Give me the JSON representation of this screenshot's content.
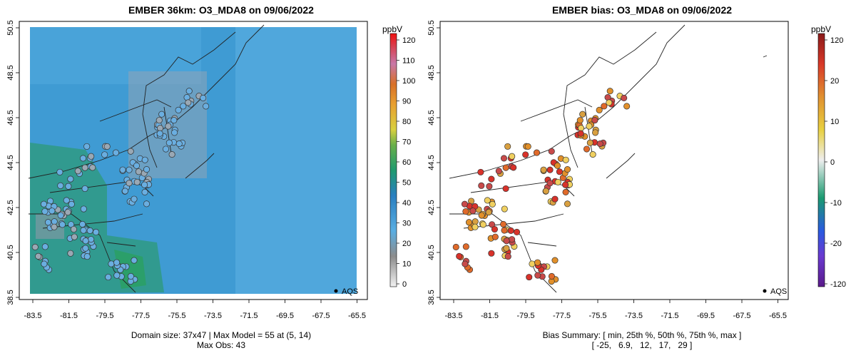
{
  "left_panel": {
    "title": "EMBER 36km: O3_MDA8 on 09/06/2022",
    "caption_line1": "Domain size: 37x47 | Max Model = 55 at (5, 14)",
    "caption_line2": "Max Obs: 43",
    "legend_label": "AQS",
    "colorbar": {
      "unit": "ppbV",
      "ticks": [
        "0",
        "10",
        "20",
        "30",
        "40",
        "50",
        "60",
        "70",
        "80",
        "90",
        "100",
        "110",
        "120"
      ]
    }
  },
  "right_panel": {
    "title": "EMBER bias: O3_MDA8 on 09/06/2022",
    "caption_line1": "Bias Summary: [ min, 25th %, 50th %, 75th %, max ]",
    "caption_line2": "[ -25,   6.9,   12,   17,   29 ]",
    "legend_label": "AQS",
    "colorbar": {
      "unit": "ppbV",
      "ticks": [
        "-120",
        "-20",
        "-10",
        "0",
        "10",
        "20",
        "120"
      ]
    }
  },
  "axes": {
    "x_ticks": [
      "-83.5",
      "-81.5",
      "-79.5",
      "-77.5",
      "-75.5",
      "-73.5",
      "-71.5",
      "-69.5",
      "-67.5",
      "-65.5"
    ],
    "y_ticks": [
      "38.5",
      "40.5",
      "42.5",
      "44.5",
      "46.5",
      "48.5",
      "50.5"
    ],
    "lon_range": [
      -84.5,
      -65
    ],
    "lat_range": [
      38.2,
      50.7
    ]
  },
  "colors": {
    "model_field": "#3f9bd3",
    "model_field_light": "#5aaee2",
    "model_low_gray": "#9aa3ad",
    "model_green": "#2e9a78",
    "obs_fill": "#6aaee0",
    "bias_high": "#d8322a",
    "bias_mid": "#e2902a",
    "bias_low": "#f0d060"
  }
}
